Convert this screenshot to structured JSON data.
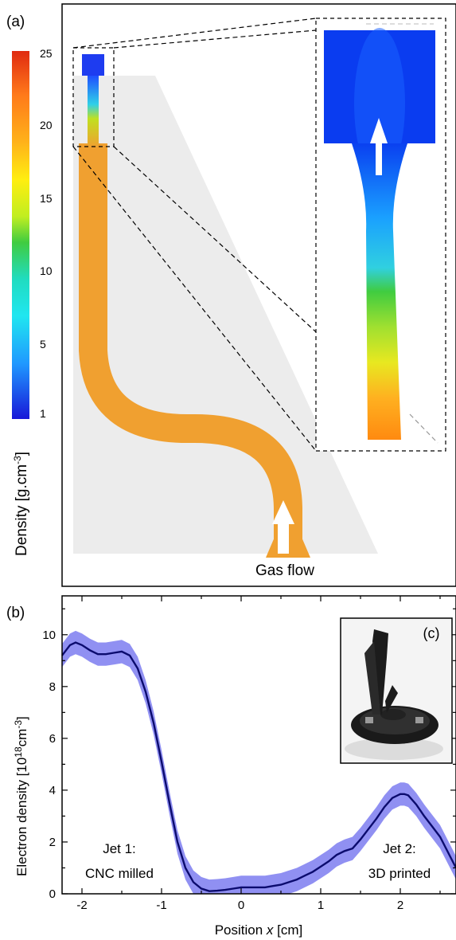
{
  "panel_a": {
    "label": "(a)",
    "colorbar": {
      "ticks": [
        "25",
        "20",
        "15",
        "10",
        "5",
        "1"
      ],
      "label_main": "Density [g.cm",
      "label_sup": "-3",
      "label_end": "]"
    },
    "annotation": "Gas flow"
  },
  "panel_b": {
    "label": "(b)",
    "inset_label": "(c)",
    "annotation_left": [
      "Jet 1:",
      "CNC milled"
    ],
    "annotation_right": [
      "Jet 2:",
      "3D printed"
    ]
  },
  "chart_data": {
    "type": "line",
    "title": "",
    "xlabel": "Position x [cm]",
    "ylabel": "Electron density [10^18 cm^-3]",
    "xlim": [
      -2.25,
      2.7
    ],
    "ylim": [
      0,
      11.5
    ],
    "xticks": [
      -2,
      -1,
      0,
      1,
      2
    ],
    "yticks": [
      0,
      2,
      4,
      6,
      8,
      10
    ],
    "series": [
      {
        "color": "#0b0b6e",
        "band_color": "#7d7df0",
        "x": [
          -2.25,
          -2.15,
          -2.08,
          -2.0,
          -1.9,
          -1.8,
          -1.7,
          -1.6,
          -1.5,
          -1.4,
          -1.3,
          -1.2,
          -1.1,
          -1.0,
          -0.9,
          -0.8,
          -0.7,
          -0.6,
          -0.5,
          -0.4,
          -0.3,
          -0.2,
          -0.1,
          0.0,
          0.1,
          0.2,
          0.3,
          0.4,
          0.5,
          0.6,
          0.7,
          0.8,
          0.9,
          1.0,
          1.1,
          1.2,
          1.3,
          1.4,
          1.5,
          1.6,
          1.7,
          1.8,
          1.9,
          2.0,
          2.05,
          2.1,
          2.2,
          2.3,
          2.4,
          2.5,
          2.6,
          2.7
        ],
        "y": [
          9.2,
          9.6,
          9.7,
          9.6,
          9.4,
          9.25,
          9.25,
          9.3,
          9.35,
          9.2,
          8.7,
          7.8,
          6.6,
          5.1,
          3.5,
          2.0,
          1.0,
          0.45,
          0.2,
          0.1,
          0.12,
          0.15,
          0.2,
          0.25,
          0.25,
          0.25,
          0.25,
          0.3,
          0.35,
          0.45,
          0.55,
          0.7,
          0.85,
          1.05,
          1.25,
          1.5,
          1.65,
          1.75,
          2.1,
          2.5,
          2.9,
          3.35,
          3.7,
          3.85,
          3.85,
          3.8,
          3.45,
          3.0,
          2.6,
          2.2,
          1.6,
          1.0
        ],
        "band_halfwidth": 0.45
      }
    ]
  }
}
